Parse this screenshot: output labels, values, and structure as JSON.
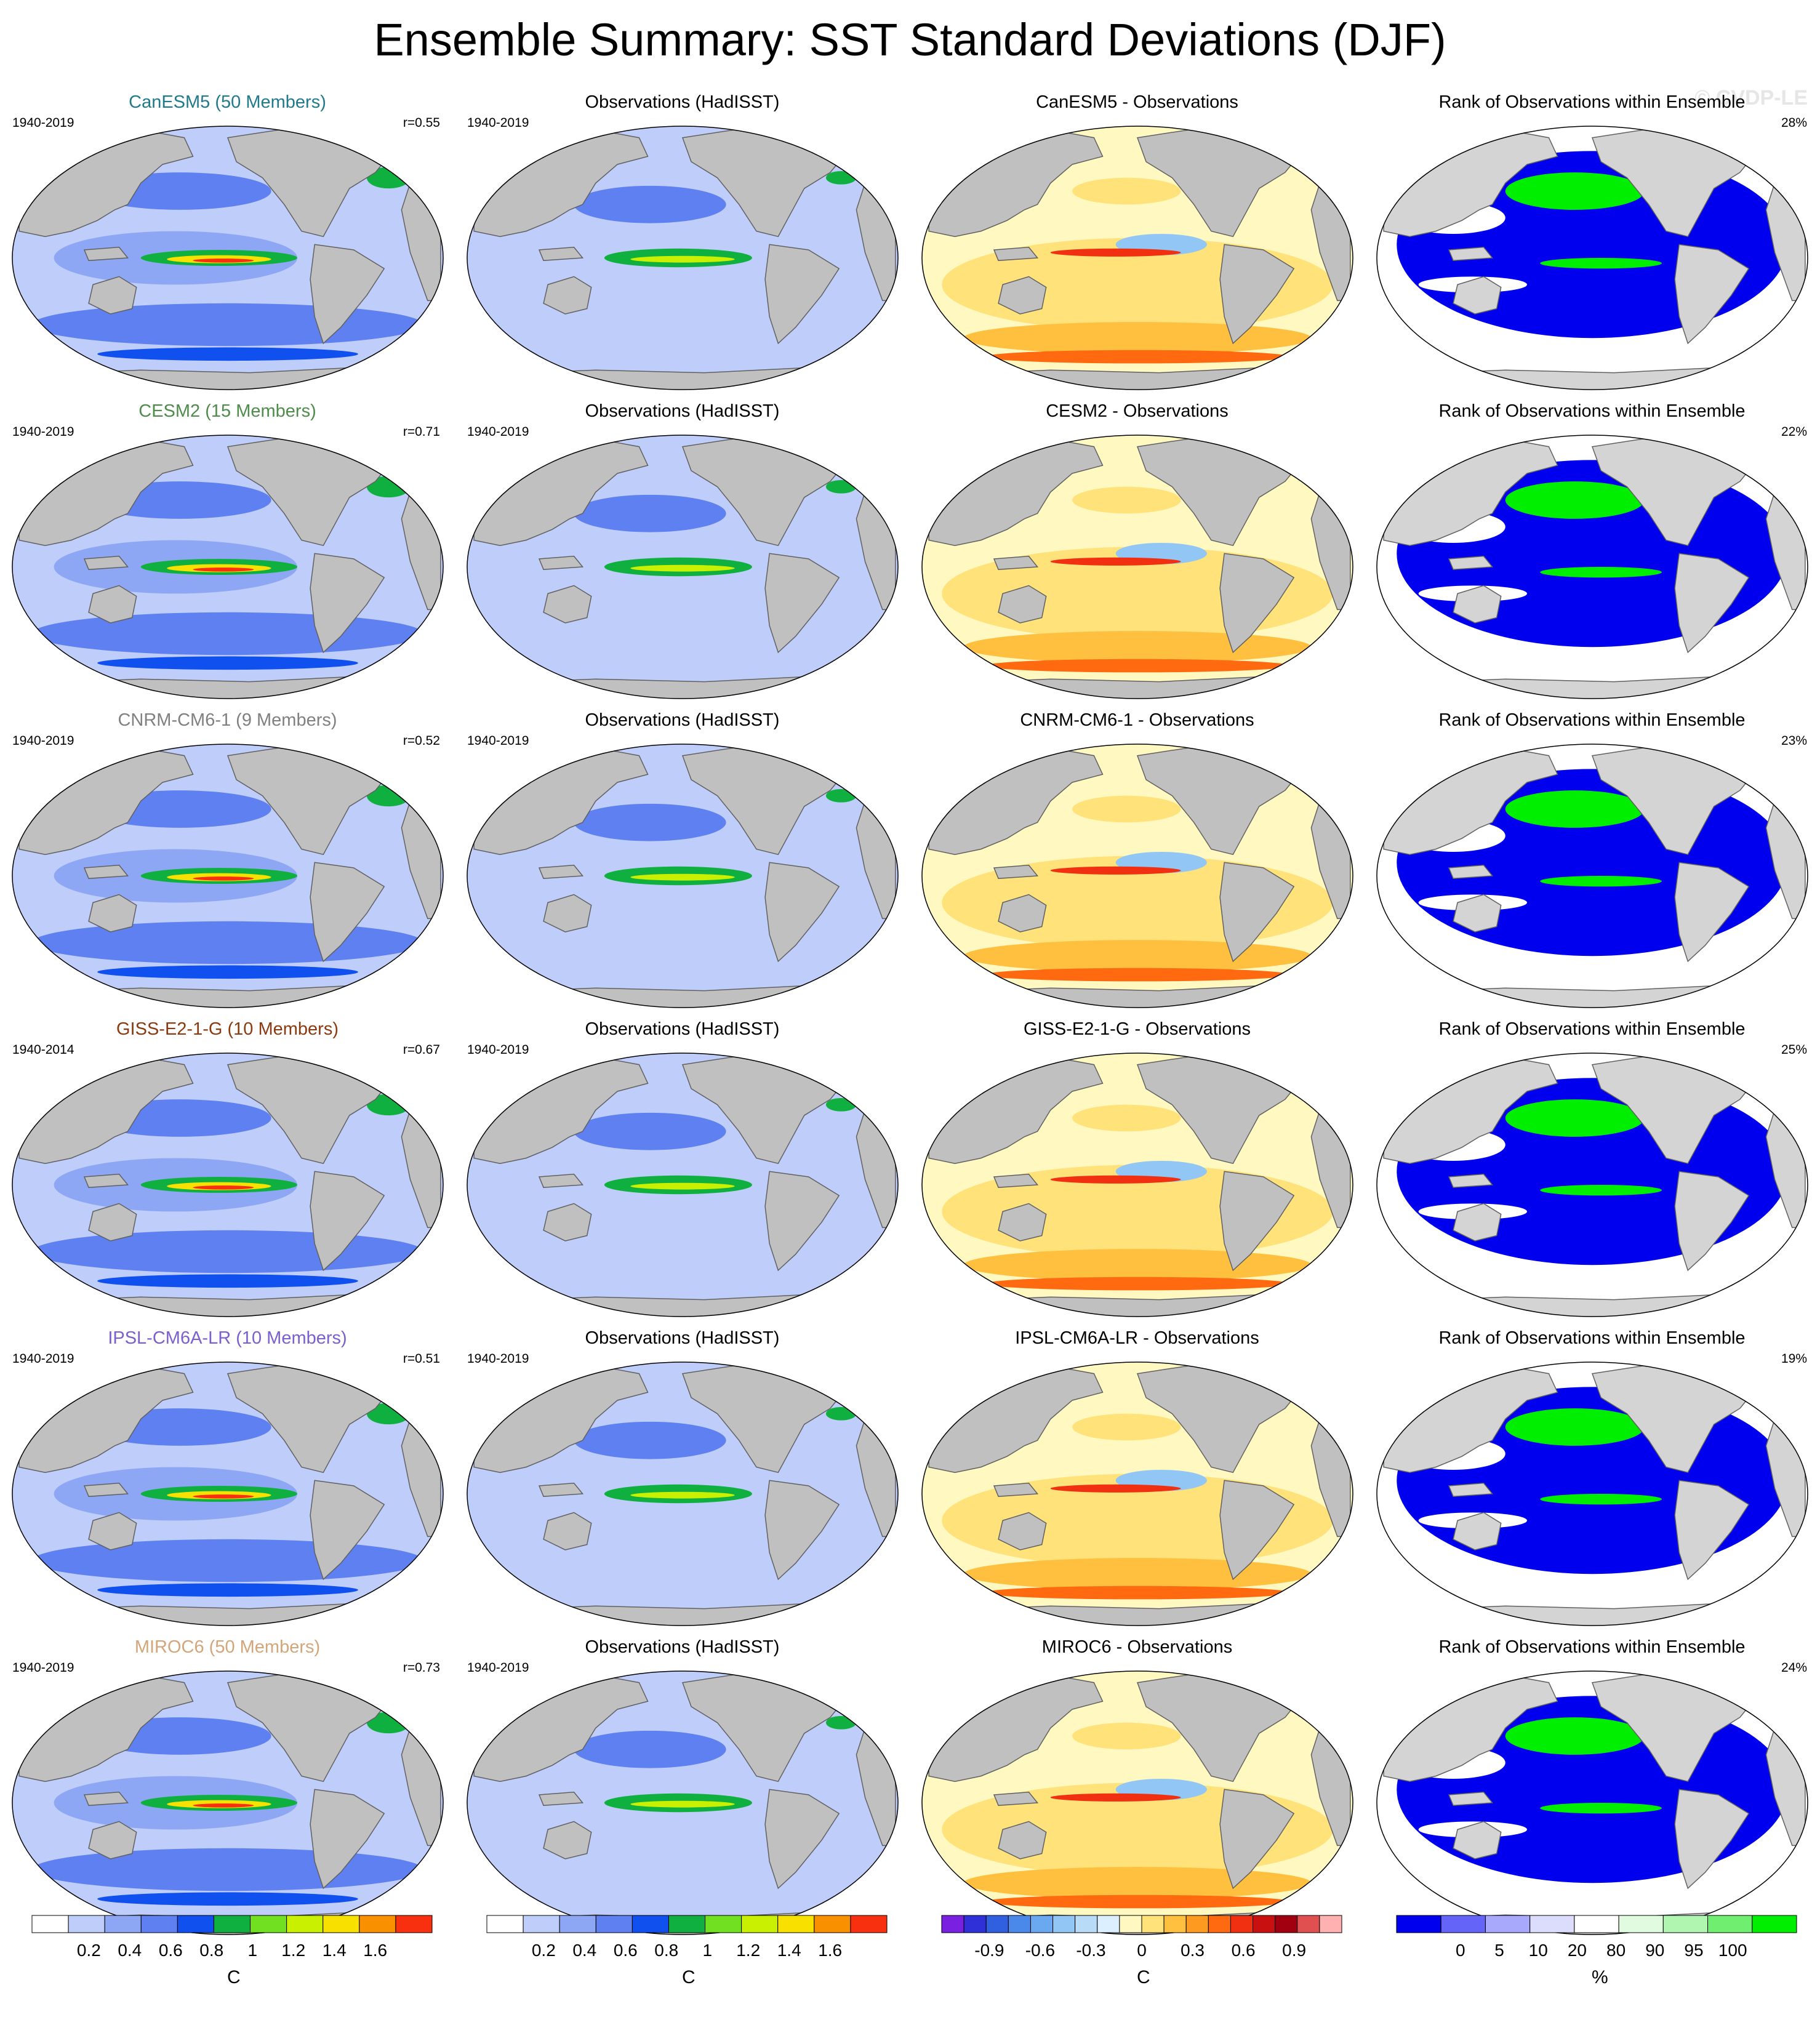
{
  "title": "Ensemble Summary: SST Standard Deviations (DJF)",
  "watermark": "© CVDP-LE",
  "rows": [
    {
      "model_title": "CanESM5 (50 Members)",
      "title_color": "#1f7a8c",
      "period": "1940-2019",
      "r": "r=0.55",
      "obs_title": "Observations (HadISST)",
      "obs_period": "1940-2019",
      "diff_title": "CanESM5 - Observations",
      "rank_title": "Rank of Observations within Ensemble",
      "rank_pct": "28%"
    },
    {
      "model_title": "CESM2 (15 Members)",
      "title_color": "#4e8c4a",
      "period": "1940-2019",
      "r": "r=0.71",
      "obs_title": "Observations (HadISST)",
      "obs_period": "1940-2019",
      "diff_title": "CESM2 - Observations",
      "rank_title": "Rank of Observations within Ensemble",
      "rank_pct": "22%"
    },
    {
      "model_title": "CNRM-CM6-1 (9 Members)",
      "title_color": "#808080",
      "period": "1940-2019",
      "r": "r=0.52",
      "obs_title": "Observations (HadISST)",
      "obs_period": "1940-2019",
      "diff_title": "CNRM-CM6-1 - Observations",
      "rank_title": "Rank of Observations within Ensemble",
      "rank_pct": "23%"
    },
    {
      "model_title": "GISS-E2-1-G (10 Members)",
      "title_color": "#8b3a0f",
      "period": "1940-2014",
      "r": "r=0.67",
      "obs_title": "Observations (HadISST)",
      "obs_period": "1940-2019",
      "diff_title": "GISS-E2-1-G - Observations",
      "rank_title": "Rank of Observations within Ensemble",
      "rank_pct": "25%"
    },
    {
      "model_title": "IPSL-CM6A-LR (10 Members)",
      "title_color": "#7b5fd1",
      "period": "1940-2019",
      "r": "r=0.51",
      "obs_title": "Observations (HadISST)",
      "obs_period": "1940-2019",
      "diff_title": "IPSL-CM6A-LR - Observations",
      "rank_title": "Rank of Observations within Ensemble",
      "rank_pct": "19%"
    },
    {
      "model_title": "MIROC6 (50 Members)",
      "title_color": "#d2a679",
      "period": "1940-2019",
      "r": "r=0.73",
      "obs_title": "Observations (HadISST)",
      "obs_period": "1940-2019",
      "diff_title": "MIROC6 - Observations",
      "rank_title": "Rank of Observations within Ensemble",
      "rank_pct": "24%"
    }
  ],
  "colorbars": [
    {
      "unit": "C",
      "labels": [
        "0.2",
        "0.4",
        "0.6",
        "0.8",
        "1",
        "1.2",
        "1.4",
        "1.6"
      ],
      "colors": [
        "#ffffff",
        "#bfcdfa",
        "#8ea7f5",
        "#5f80f0",
        "#1050ee",
        "#10b040",
        "#70e020",
        "#c8f000",
        "#f8e000",
        "#f89000",
        "#f83010"
      ]
    },
    {
      "unit": "C",
      "labels": [
        "0.2",
        "0.4",
        "0.6",
        "0.8",
        "1",
        "1.2",
        "1.4",
        "1.6"
      ],
      "colors": [
        "#ffffff",
        "#bfcdfa",
        "#8ea7f5",
        "#5f80f0",
        "#1050ee",
        "#10b040",
        "#70e020",
        "#c8f000",
        "#f8e000",
        "#f89000",
        "#f83010"
      ]
    },
    {
      "unit": "C",
      "labels": [
        "-0.9",
        "-0.6",
        "-0.3",
        "0",
        "0.3",
        "0.6",
        "0.9"
      ],
      "colors": [
        "#7a20e0",
        "#3030d8",
        "#3060e0",
        "#4a88ea",
        "#6aa8f0",
        "#92c6f4",
        "#b8dcf8",
        "#dcefff",
        "#fff8c0",
        "#ffe27a",
        "#ffc040",
        "#ff9a20",
        "#ff6a10",
        "#f03010",
        "#c81010",
        "#a00010",
        "#e05050",
        "#ffb0b0"
      ]
    },
    {
      "unit": "%",
      "labels": [
        "0",
        "5",
        "10",
        "20",
        "80",
        "90",
        "95",
        "100"
      ],
      "colors": [
        "#0000ee",
        "#6464f8",
        "#a8a8fc",
        "#dcdcfd",
        "#ffffff",
        "#e0fbe0",
        "#b0f5b0",
        "#70ee70",
        "#00ee00"
      ]
    }
  ]
}
